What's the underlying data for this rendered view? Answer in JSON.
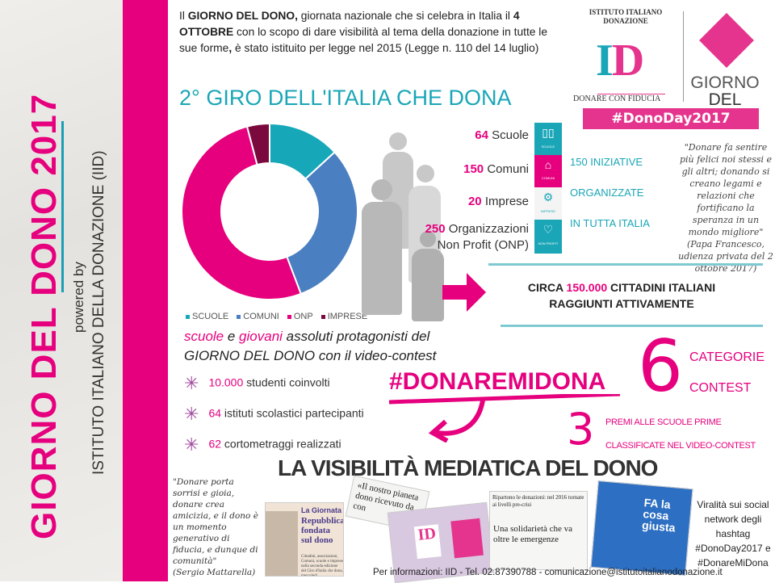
{
  "sidebar": {
    "title": "GIORNO DEL DONO 2017",
    "powered_by": "powered by",
    "organization": "ISTITUTO ITALIANO DELLA DONAZIONE (IID)"
  },
  "intro": {
    "p1": "Il ",
    "b1": "GIORNO DEL DONO,",
    "p2": " giornata nazionale che si celebra in Italia il ",
    "b2": "4 OTTOBRE",
    "p3": " con lo scopo di dare visibilità al tema della donazione in tutte le sue forme",
    "b3": ",",
    "p4": " è stato istituito per legge nel 2015 (Legge n. 110 del 14 luglio)"
  },
  "heading": "2° GIRO DELL'ITALIA CHE DONA",
  "logo": {
    "arc_text": "ISTITUTO ITALIANO DONAZIONE",
    "letters": "ID",
    "tagline": "DONARE CON FIDUCIA",
    "giorno": "GIORNO",
    "del_dono": "DEL DONO",
    "hashtag": "#DonoDay2017",
    "colors": {
      "teal": "#1aa6b7",
      "pink": "#e5348d"
    }
  },
  "chart_data": {
    "type": "pie",
    "donut": true,
    "categories": [
      "SCUOLE",
      "COMUNI",
      "ONP",
      "IMPRESE"
    ],
    "values": [
      64,
      150,
      250,
      20
    ],
    "colors": [
      "#16a8b8",
      "#4a7fc1",
      "#e6007e",
      "#7a0a3e"
    ],
    "legend": "bottom"
  },
  "stats": [
    {
      "num": "64",
      "label": "Scuole",
      "icon": "book-icon",
      "icon_label": "SCUOLE",
      "color": "#1aa6b7"
    },
    {
      "num": "150",
      "label": "Comuni",
      "icon": "building-icon",
      "icon_label": "COMUNI",
      "color": "#e6007e"
    },
    {
      "num": "20",
      "label": "Imprese",
      "icon": "gears-icon",
      "icon_label": "IMPRESE",
      "color": "#f4f4f4"
    },
    {
      "num": "250",
      "label": "Organizzazioni",
      "label2": "Non Profit (ONP)",
      "icon": "heart-icon",
      "icon_label": "NON PROFIT",
      "color": "#1aa6b7"
    }
  ],
  "iniziative": [
    "150 INIZIATIVE",
    "ORGANIZZATE",
    "IN TUTTA ITALIA"
  ],
  "quote_pope": {
    "text": "\"Donare fa sentire più felici noi stessi e gli altri; donando si creano legami e relazioni che fortificano la speranza in un mondo migliore\"",
    "author": "(Papa Francesco, udienza privata del 2 ottobre 2017)"
  },
  "reach": {
    "pre": "CIRCA ",
    "num": "150.000",
    "post": " CITTADINI ITALIANI",
    "line2": "RAGGIUNTI ATTIVAMENTE"
  },
  "contest": {
    "w1": "scuole",
    "w2": " e ",
    "w3": "giovani",
    "w4": " assoluti protagonisti del",
    "line2a": "GIORNO DEL DONO",
    "line2b": " con il video-contest"
  },
  "bullets": [
    {
      "num": "10.000",
      "text": " studenti coinvolti"
    },
    {
      "num": "64",
      "text": " istituti scolastici partecipanti"
    },
    {
      "num": "62",
      "text": " cortometraggi realizzati"
    }
  ],
  "hashtag_contest": "#DONAREMIDONA",
  "categories": {
    "num": "6",
    "l1": "CATEGORIE",
    "l2": "CONTEST"
  },
  "prizes": {
    "num": "3",
    "l1": "PREMI ALLE SCUOLE PRIME",
    "l2": "CLASSIFICATE NEL VIDEO-CONTEST"
  },
  "media_title": "LA VISIBILITÀ MEDIATICA DEL DONO",
  "quote_mattarella": {
    "text": "\"Donare porta sorrisi e gioia, donare crea amicizia, e il dono è un momento generativo di fiducia, e dunque di comunità\"",
    "author": "(Sergio Mattarella)"
  },
  "clippings": {
    "c1_kicker": "La Giornata",
    "c1_title": "Repubblica fondata sul dono",
    "c1_body": "Cittadini, associazioni, Comuni, scuole e imprese nella seconda edizione del Giro d'Italia che dona, mercoledì.",
    "c2_title": "«Il nostro pianeta dono ricevuto da con",
    "c3_title": "Ripartono le donazioni: nel 2016 tornate ai livelli pre-crisi",
    "c4_title": "Una solidarietà che va oltre le emergenze",
    "c5_title": "FA la cosa giusta"
  },
  "viral": {
    "l1": "Viralità sui social network degli hashtag",
    "l2": "#DonoDay2017 e",
    "l3": "#DonareMiDona"
  },
  "footer": "Per informazioni: IID - Tel. 02.87390788 - comunicazione@istitutoitalianodonazione.it"
}
